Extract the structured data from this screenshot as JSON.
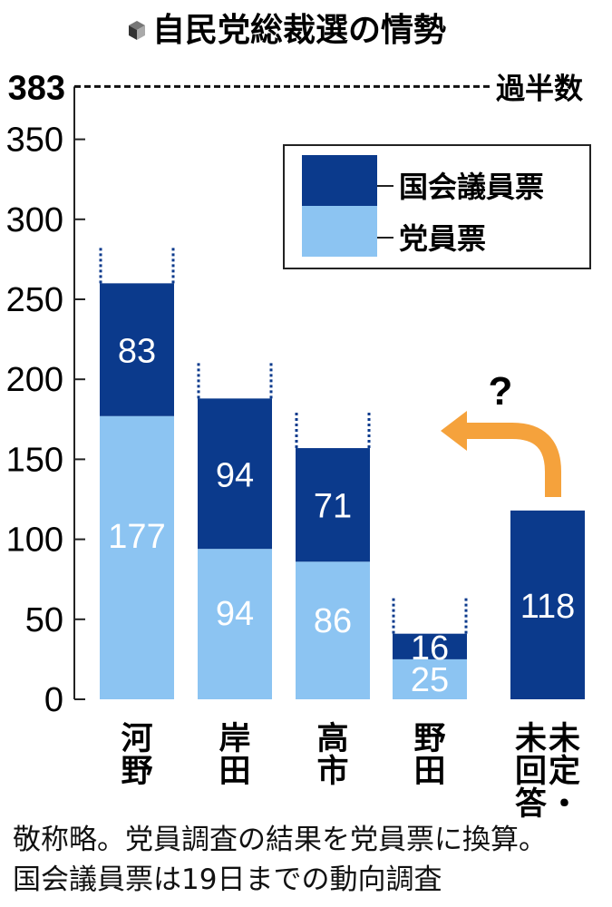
{
  "title": "自民党総裁選の情勢",
  "chart_data": {
    "type": "bar",
    "stacked": true,
    "categories": [
      "河野",
      "岸田",
      "高市",
      "野田",
      "未定・未回答"
    ],
    "category_label_columns": [
      [
        "河野"
      ],
      [
        "岸田"
      ],
      [
        "高市"
      ],
      [
        "野田"
      ],
      [
        "未定・",
        "未回答"
      ]
    ],
    "series": [
      {
        "name": "党員票",
        "values": [
          177,
          94,
          86,
          25,
          0
        ],
        "color": "#8cc4f2"
      },
      {
        "name": "国会議員票",
        "values": [
          83,
          94,
          71,
          16,
          118
        ],
        "color": "#0b3a8c"
      }
    ],
    "data_labels": {
      "member_votes": [
        "177",
        "94",
        "86",
        "25",
        ""
      ],
      "diet_votes": [
        "83",
        "94",
        "71",
        "16",
        "118"
      ]
    },
    "ylim": [
      0,
      383
    ],
    "yticks": [
      "0",
      "50",
      "100",
      "150",
      "200",
      "250",
      "300",
      "350"
    ],
    "ytick_values": [
      0,
      50,
      100,
      150,
      200,
      250,
      300,
      350
    ],
    "majority_value": 383,
    "majority_value_label": "383",
    "majority_label": "過半数",
    "unknown_mark": "?",
    "legend_position": "top-right",
    "grid": false,
    "dotted_top_categories": [
      "河野",
      "岸田",
      "高市",
      "野田"
    ]
  },
  "note": {
    "line1": "敬称略。党員調査の結果を党員票に換算。",
    "line2": "国会議員票は19日までの動向調査"
  }
}
